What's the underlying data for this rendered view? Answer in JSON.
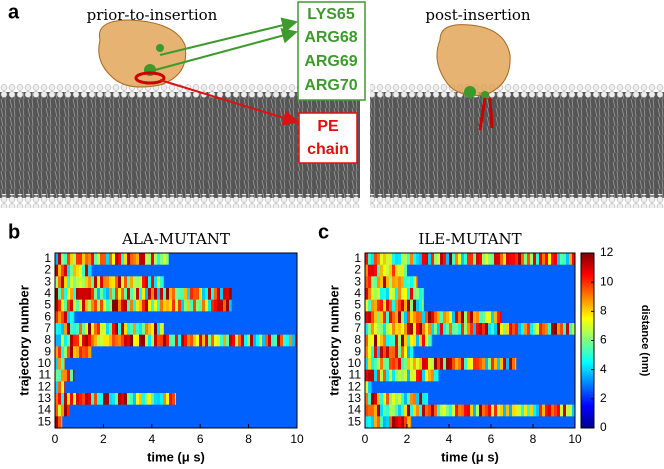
{
  "panel_a": {
    "letter": "a",
    "left_label": "prior-to-insertion",
    "right_label": "post-insertion",
    "residues": [
      "LYS65",
      "ARG68",
      "ARG69",
      "ARG70"
    ],
    "lipid_label": [
      "PE",
      "chain"
    ]
  },
  "chart_data": [
    {
      "type": "heatmap",
      "letter": "b",
      "title": "ALA-MUTANT",
      "x_label": "time (μ s)",
      "y_label": "trajectory number",
      "categories": [
        "1",
        "2",
        "3",
        "4",
        "5",
        "6",
        "7",
        "8",
        "9",
        "10",
        "11",
        "12",
        "13",
        "14",
        "15"
      ],
      "insertion_time": [
        4.7,
        1.5,
        4.5,
        7.3,
        7.3,
        0.8,
        4.5,
        null,
        1.5,
        0.4,
        0.8,
        0.4,
        5.0,
        0.6,
        0.3
      ],
      "xlim": [
        0,
        10
      ],
      "xticks": [
        0,
        2,
        4,
        6,
        8,
        10
      ]
    },
    {
      "type": "heatmap",
      "letter": "c",
      "title": "ILE-MUTANT",
      "x_label": "time (μ s)",
      "y_label": "trajectory number",
      "categories": [
        "1",
        "2",
        "3",
        "4",
        "5",
        "6",
        "7",
        "8",
        "9",
        "10",
        "11",
        "12",
        "13",
        "14",
        "15"
      ],
      "insertion_time": [
        null,
        2.0,
        2.5,
        2.8,
        2.8,
        6.5,
        null,
        3.2,
        2.3,
        7.2,
        3.5,
        0.3,
        3.0,
        null,
        2.2
      ],
      "xlim": [
        0,
        10
      ],
      "xticks": [
        0,
        2,
        4,
        6,
        8,
        10
      ],
      "colorbar": {
        "label": "distance (nm)",
        "lim": [
          0,
          12
        ],
        "ticks": [
          0,
          2,
          4,
          6,
          8,
          10,
          12
        ]
      }
    }
  ]
}
